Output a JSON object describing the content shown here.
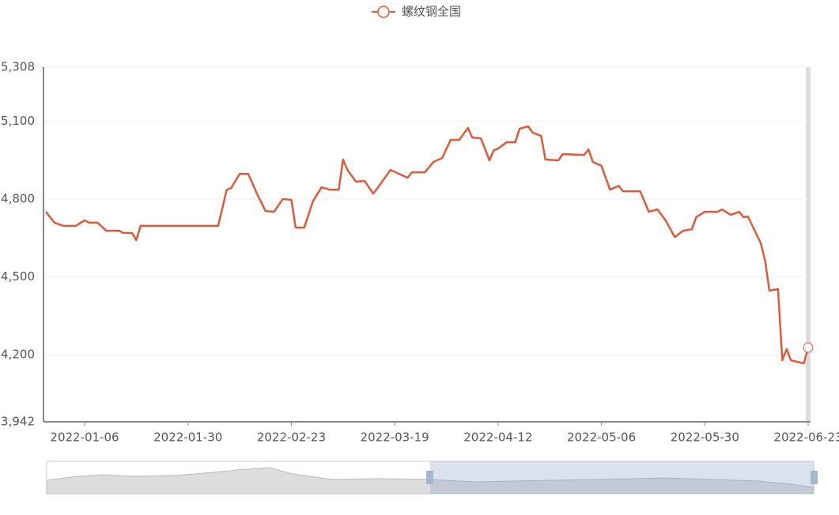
{
  "chart_data": {
    "type": "line",
    "x": [
      "2021-12-28",
      "2021-12-30",
      "2022-01-01",
      "2022-01-04",
      "2022-01-06",
      "2022-01-07",
      "2022-01-09",
      "2022-01-11",
      "2022-01-14",
      "2022-01-15",
      "2022-01-17",
      "2022-01-18",
      "2022-01-19",
      "2022-01-23",
      "2022-02-06",
      "2022-02-08",
      "2022-02-09",
      "2022-02-11",
      "2022-02-13",
      "2022-02-15",
      "2022-02-17",
      "2022-02-19",
      "2022-02-21",
      "2022-02-23",
      "2022-02-24",
      "2022-02-26",
      "2022-02-28",
      "2022-03-02",
      "2022-03-04",
      "2022-03-06",
      "2022-03-07",
      "2022-03-08",
      "2022-03-10",
      "2022-03-12",
      "2022-03-14",
      "2022-03-15",
      "2022-03-18",
      "2022-03-20",
      "2022-03-22",
      "2022-03-23",
      "2022-03-26",
      "2022-03-28",
      "2022-03-30",
      "2022-04-01",
      "2022-04-03",
      "2022-04-05",
      "2022-04-06",
      "2022-04-08",
      "2022-04-10",
      "2022-04-11",
      "2022-04-12",
      "2022-04-14",
      "2022-04-16",
      "2022-04-17",
      "2022-04-19",
      "2022-04-20",
      "2022-04-22",
      "2022-04-23",
      "2022-04-26",
      "2022-04-27",
      "2022-05-02",
      "2022-05-03",
      "2022-05-04",
      "2022-05-06",
      "2022-05-08",
      "2022-05-10",
      "2022-05-11",
      "2022-05-15",
      "2022-05-17",
      "2022-05-19",
      "2022-05-21",
      "2022-05-23",
      "2022-05-25",
      "2022-05-27",
      "2022-05-28",
      "2022-05-30",
      "2022-06-02",
      "2022-06-03",
      "2022-06-05",
      "2022-06-07",
      "2022-06-08",
      "2022-06-09",
      "2022-06-12",
      "2022-06-13",
      "2022-06-14",
      "2022-06-16",
      "2022-06-17",
      "2022-06-18",
      "2022-06-19",
      "2022-06-22",
      "2022-06-23"
    ],
    "series": [
      {
        "name": "螺纹钢全国",
        "color": "#dd5a3a",
        "values": [
          4751,
          4709,
          4697,
          4697,
          4718,
          4709,
          4709,
          4678,
          4678,
          4669,
          4669,
          4642,
          4697,
          4697,
          4697,
          4836,
          4842,
          4897,
          4897,
          4821,
          4754,
          4751,
          4800,
          4797,
          4690,
          4690,
          4791,
          4845,
          4836,
          4836,
          4952,
          4913,
          4867,
          4870,
          4821,
          4842,
          4912,
          4897,
          4882,
          4903,
          4903,
          4943,
          4958,
          5028,
          5028,
          5074,
          5037,
          5034,
          4949,
          4988,
          4994,
          5019,
          5019,
          5071,
          5080,
          5056,
          5043,
          4952,
          4949,
          4973,
          4970,
          4991,
          4943,
          4928,
          4836,
          4851,
          4830,
          4830,
          4751,
          4760,
          4715,
          4654,
          4678,
          4684,
          4730,
          4751,
          4751,
          4760,
          4739,
          4751,
          4730,
          4733,
          4630,
          4563,
          4447,
          4453,
          4179,
          4222,
          4179,
          4167,
          4228
        ]
      }
    ],
    "xlim": [
      "2021-12-28",
      "2022-06-23"
    ],
    "xticks": [
      "2022-01-06",
      "2022-01-30",
      "2022-02-23",
      "2022-03-19",
      "2022-04-12",
      "2022-05-06",
      "2022-05-30",
      "2022-06-23"
    ],
    "ylim": [
      3942,
      5308
    ],
    "yticks": [
      {
        "value": 3942,
        "label": "3,942"
      },
      {
        "value": 4200,
        "label": "4,200"
      },
      {
        "value": 4500,
        "label": "4,500"
      },
      {
        "value": 4800,
        "label": "4,800"
      },
      {
        "value": 5100,
        "label": "5,100"
      },
      {
        "value": 5308,
        "label": "5,308"
      }
    ],
    "grid": true,
    "legend": "top"
  }
}
